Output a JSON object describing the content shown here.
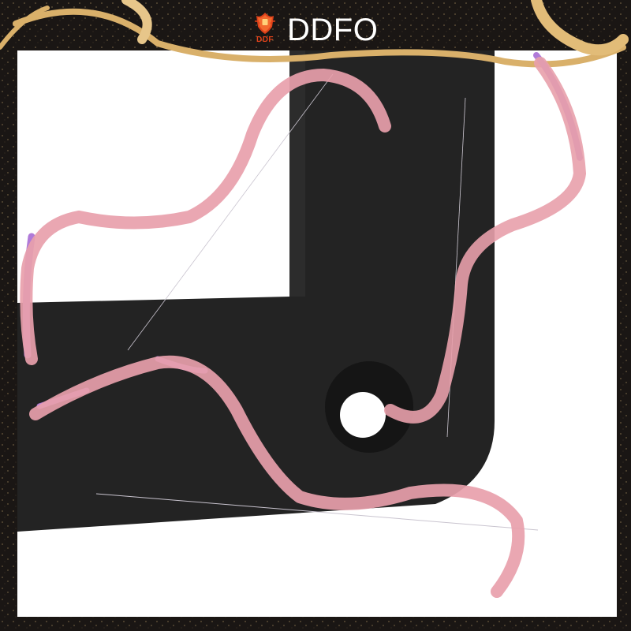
{
  "brand": {
    "logo_text": "DDF",
    "name": "DDFO"
  },
  "icons": {
    "logo": "shield-crest-icon"
  },
  "colors": {
    "frame": "#1a1614",
    "gold_ribbon": "#d9b06a",
    "pink_ribbon": "#e8a0ab",
    "purple_ribbon": "#b07ad8",
    "gasket": "#232323",
    "background": "#ffffff",
    "logo": "#e0421a"
  }
}
